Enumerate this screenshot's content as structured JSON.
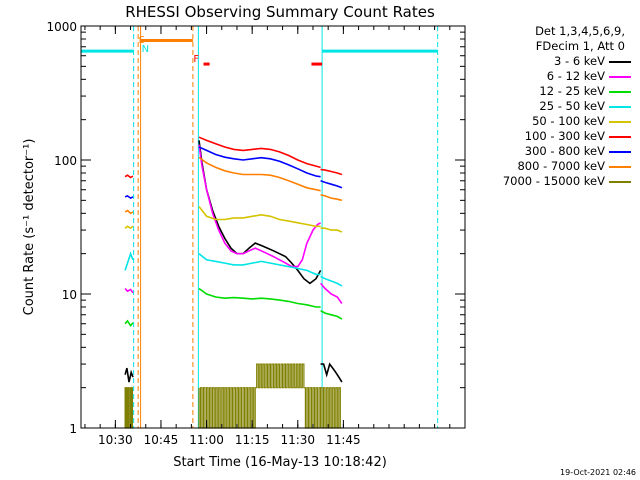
{
  "chart_data": {
    "type": "line",
    "title": "RHESSI Observing Summary Count Rates",
    "xlabel": "Start Time (16-May-13 10:18:42)",
    "ylabel": "Count Rate (s⁻¹ detector⁻¹)",
    "yscale": "log",
    "ylim": [
      1,
      1000
    ],
    "xlim_minutes": [
      18.7,
      145
    ],
    "x_ticks": [
      "10:30",
      "10:45",
      "11:00",
      "11:15",
      "11:30",
      "11:45"
    ],
    "y_ticks": [
      "1",
      "10",
      "100",
      "1000"
    ],
    "legend_header": [
      "Det 1,3,4,5,6,9,",
      "FDecim 1, Att 0"
    ],
    "legend_placement": "right",
    "series": [
      {
        "name": "3 - 6 keV",
        "color": "#000000",
        "segments": [
          {
            "x": [
              33.2,
              33.8,
              34.5,
              35.2,
              35.8
            ],
            "y": [
              2.5,
              2.8,
              2.2,
              2.6,
              2.4
            ]
          },
          {
            "x": [
              57.5,
              58.5,
              60,
              62,
              64,
              66,
              68,
              70,
              72,
              74,
              76,
              78,
              80,
              82,
              84,
              86,
              88,
              90,
              92,
              94,
              96,
              97.5
            ],
            "y": [
              140,
              95,
              60,
              42,
              32,
              26,
              22,
              20,
              20,
              22,
              24,
              23,
              22,
              21,
              20,
              19,
              17,
              15,
              13,
              12,
              13,
              15
            ]
          },
          {
            "x": [
              97.5,
              98.5,
              99.5,
              100.5,
              101.5,
              102.5,
              103.5,
              104.5
            ],
            "y": [
              3.0,
              3.0,
              2.5,
              3.0,
              2.8,
              2.6,
              2.4,
              2.2
            ]
          }
        ]
      },
      {
        "name": "6 - 12 keV",
        "color": "#ff00ff",
        "segments": [
          {
            "x": [
              33.2,
              34,
              35,
              35.8
            ],
            "y": [
              11,
              10.5,
              10.8,
              10.2
            ]
          },
          {
            "x": [
              57.5,
              58.5,
              60,
              62,
              64,
              66,
              68,
              70,
              72,
              74,
              76,
              78,
              80,
              82,
              84,
              86,
              88,
              90,
              91.5,
              93,
              95,
              96.5,
              97.5
            ],
            "y": [
              130,
              90,
              60,
              40,
              30,
              24,
              21,
              20,
              20,
              21,
              22,
              21,
              20,
              19,
              18,
              17,
              16,
              16,
              18,
              24,
              30,
              33,
              34
            ]
          },
          {
            "x": [
              97.5,
              99,
              101,
              103,
              104.5
            ],
            "y": [
              12,
              11,
              10,
              9.5,
              8.5
            ]
          }
        ]
      },
      {
        "name": "12 - 25 keV",
        "color": "#00dd00",
        "segments": [
          {
            "x": [
              33.2,
              34,
              35,
              35.8
            ],
            "y": [
              6.0,
              6.3,
              5.8,
              6.1
            ]
          },
          {
            "x": [
              57.5,
              60,
              63,
              66,
              69,
              72,
              75,
              78,
              81,
              84,
              87,
              90,
              93,
              96,
              97.5
            ],
            "y": [
              11,
              10,
              9.5,
              9.3,
              9.4,
              9.3,
              9.2,
              9.3,
              9.2,
              9.0,
              8.8,
              8.5,
              8.3,
              8.0,
              8.0
            ]
          },
          {
            "x": [
              97.5,
              99,
              101,
              103,
              104.5
            ],
            "y": [
              7.5,
              7.2,
              7.0,
              6.8,
              6.5
            ]
          }
        ]
      },
      {
        "name": "25 - 50 keV",
        "color": "#00e5e5",
        "segments": [
          {
            "x": [
              33.2,
              34,
              35,
              35.8
            ],
            "y": [
              15,
              17,
              20,
              18
            ]
          },
          {
            "x": [
              57.5,
              60,
              63,
              66,
              69,
              72,
              75,
              78,
              81,
              84,
              87,
              90,
              93,
              96,
              97.5
            ],
            "y": [
              20,
              18,
              17.5,
              17,
              16.5,
              16.5,
              17,
              17.5,
              17,
              16.5,
              16,
              15.5,
              15,
              14,
              14
            ]
          },
          {
            "x": [
              97.5,
              99,
              101,
              103,
              104.5
            ],
            "y": [
              13.5,
              13,
              12.5,
              12,
              11.5
            ]
          }
        ]
      },
      {
        "name": "50 - 100 keV",
        "color": "#d4c400",
        "segments": [
          {
            "x": [
              33.2,
              34,
              35,
              35.8
            ],
            "y": [
              31,
              32,
              31,
              32
            ]
          },
          {
            "x": [
              57.5,
              60,
              63,
              66,
              69,
              72,
              75,
              78,
              81,
              84,
              87,
              90,
              93,
              96,
              97.5
            ],
            "y": [
              45,
              38,
              36,
              36,
              37,
              37,
              38,
              39,
              38,
              36,
              35,
              34,
              33,
              32,
              32
            ]
          },
          {
            "x": [
              97.5,
              99,
              101,
              103,
              104.5
            ],
            "y": [
              31,
              31,
              30,
              30,
              29
            ]
          }
        ]
      },
      {
        "name": "100 - 300 keV",
        "color": "#ff0000",
        "segments": [
          {
            "x": [
              33.2,
              34,
              35,
              35.8
            ],
            "y": [
              75,
              77,
              74,
              76
            ]
          },
          {
            "x": [
              57.5,
              60,
              63,
              66,
              69,
              72,
              75,
              78,
              81,
              84,
              87,
              90,
              93,
              96,
              97.5
            ],
            "y": [
              148,
              140,
              132,
              125,
              120,
              118,
              120,
              122,
              120,
              115,
              108,
              100,
              94,
              90,
              88
            ]
          },
          {
            "x": [
              97.5,
              99,
              101,
              103,
              104.5
            ],
            "y": [
              85,
              84,
              82,
              80,
              78
            ]
          }
        ]
      },
      {
        "name": "300 - 800 keV",
        "color": "#0000ff",
        "segments": [
          {
            "x": [
              33.2,
              34,
              35,
              35.8
            ],
            "y": [
              53,
              54,
              52,
              53
            ]
          },
          {
            "x": [
              57.5,
              60,
              63,
              66,
              69,
              72,
              75,
              78,
              81,
              84,
              87,
              90,
              93,
              96,
              97.5
            ],
            "y": [
              125,
              118,
              110,
              105,
              102,
              100,
              102,
              104,
              102,
              98,
              92,
              86,
              80,
              76,
              75
            ]
          },
          {
            "x": [
              97.5,
              99,
              101,
              103,
              104.5
            ],
            "y": [
              70,
              68,
              66,
              64,
              62
            ]
          }
        ]
      },
      {
        "name": "800 - 7000 keV",
        "color": "#ff8000",
        "segments": [
          {
            "x": [
              33.2,
              34,
              35,
              35.8
            ],
            "y": [
              41,
              42,
              40,
              41
            ]
          },
          {
            "x": [
              57.5,
              60,
              63,
              66,
              69,
              72,
              75,
              78,
              81,
              84,
              87,
              90,
              93,
              96,
              97.5
            ],
            "y": [
              105,
              95,
              88,
              83,
              80,
              78,
              78,
              78,
              77,
              74,
              70,
              66,
              62,
              60,
              59
            ]
          },
          {
            "x": [
              97.5,
              99,
              101,
              103,
              104.5
            ],
            "y": [
              55,
              54,
              52,
              51,
              50
            ]
          }
        ]
      },
      {
        "name": "7000 - 15000 keV",
        "color": "#808000",
        "step": true,
        "segments": [
          {
            "x": [
              33.2,
              33.6,
              34,
              34.4,
              34.8,
              35.2,
              35.6,
              35.8
            ],
            "y": [
              1,
              2,
              1,
              2,
              1,
              2,
              1,
              2
            ]
          },
          {
            "x": [
              57.5,
              58,
              58.5,
              59,
              59.5,
              60,
              60.5,
              61,
              61.5,
              62,
              62.5,
              63,
              63.5,
              64,
              64.5,
              65,
              65.5,
              66,
              66.5,
              67,
              67.5,
              68,
              68.5,
              69,
              69.5,
              70,
              70.5,
              71,
              71.5,
              72,
              72.5,
              73,
              73.5,
              74,
              74.5,
              75,
              75.5,
              76,
              76.5,
              77,
              77.5,
              78,
              78.5,
              79,
              79.5,
              80,
              80.5,
              81,
              81.5,
              82,
              82.5,
              83,
              83.5,
              84,
              84.5,
              85,
              85.5,
              86,
              86.5,
              87,
              87.5,
              88,
              88.5,
              89,
              89.5,
              90,
              90.5,
              91,
              91.5,
              92,
              92.5,
              93,
              93.5,
              94,
              94.5,
              95,
              95.5,
              96,
              96.5,
              97,
              97.5
            ],
            "y": [
              2,
              1,
              2,
              1,
              2,
              1,
              2,
              1,
              2,
              1,
              2,
              1,
              2,
              1,
              2,
              1,
              2,
              1,
              2,
              1,
              2,
              1,
              2,
              1,
              2,
              1,
              2,
              1,
              2,
              1,
              2,
              1,
              2,
              1,
              2,
              1,
              2,
              1,
              2,
              3,
              2,
              3,
              2,
              3,
              2,
              3,
              2,
              3,
              2,
              3,
              2,
              3,
              2,
              3,
              2,
              3,
              2,
              3,
              2,
              3,
              2,
              3,
              2,
              3,
              2,
              3,
              2,
              3,
              2,
              3,
              2,
              1,
              2,
              1,
              2,
              1,
              2,
              1,
              2,
              1,
              2
            ]
          },
          {
            "x": [
              97.5,
              98,
              98.5,
              99,
              99.5,
              100,
              100.5,
              101,
              101.5,
              102,
              102.5,
              103,
              103.5,
              104,
              104.5
            ],
            "y": [
              1,
              2,
              1,
              2,
              1,
              2,
              1,
              2,
              1,
              2,
              1,
              2,
              1,
              2,
              1
            ]
          }
        ]
      }
    ],
    "flags": [
      {
        "label": "S",
        "color": "#ff8000",
        "x": [
          37,
          37
        ]
      },
      {
        "label": "N",
        "color": "#00e5e5",
        "x": [
          38,
          38
        ]
      },
      {
        "label": "F",
        "color": "#ff0000",
        "x": [
          55,
          55
        ]
      }
    ],
    "bars": [
      {
        "name": "night",
        "color": "#00e5e5",
        "x": [
          18.7,
          36
        ],
        "y": 650
      },
      {
        "name": "saa",
        "color": "#ff8000",
        "x": [
          38,
          55.5
        ],
        "y": 780
      },
      {
        "name": "flare-1",
        "color": "#ff0000",
        "x": [
          59,
          61
        ],
        "y": 520
      },
      {
        "name": "flare-2",
        "color": "#ff0000",
        "x": [
          94.5,
          98
        ],
        "y": 520
      },
      {
        "name": "night",
        "color": "#00e5e5",
        "x": [
          98,
          136
        ],
        "y": 650
      }
    ],
    "vlines": [
      {
        "color": "#00e5e5",
        "x": 18.7,
        "style": "solid"
      },
      {
        "color": "#00e5e5",
        "x": 36,
        "style": "dashed"
      },
      {
        "color": "#ff8000",
        "x": 37.5,
        "style": "dashed"
      },
      {
        "color": "#ff8000",
        "x": 38.3,
        "style": "solid"
      },
      {
        "color": "#ff8000",
        "x": 55.5,
        "style": "dashed"
      },
      {
        "color": "#00e5e5",
        "x": 57.3,
        "style": "solid"
      },
      {
        "color": "#00e5e5",
        "x": 98,
        "style": "solid"
      },
      {
        "color": "#00e5e5",
        "x": 136,
        "style": "dashed"
      }
    ]
  },
  "footer": {
    "timestamp": "19-Oct-2021 02:46"
  }
}
